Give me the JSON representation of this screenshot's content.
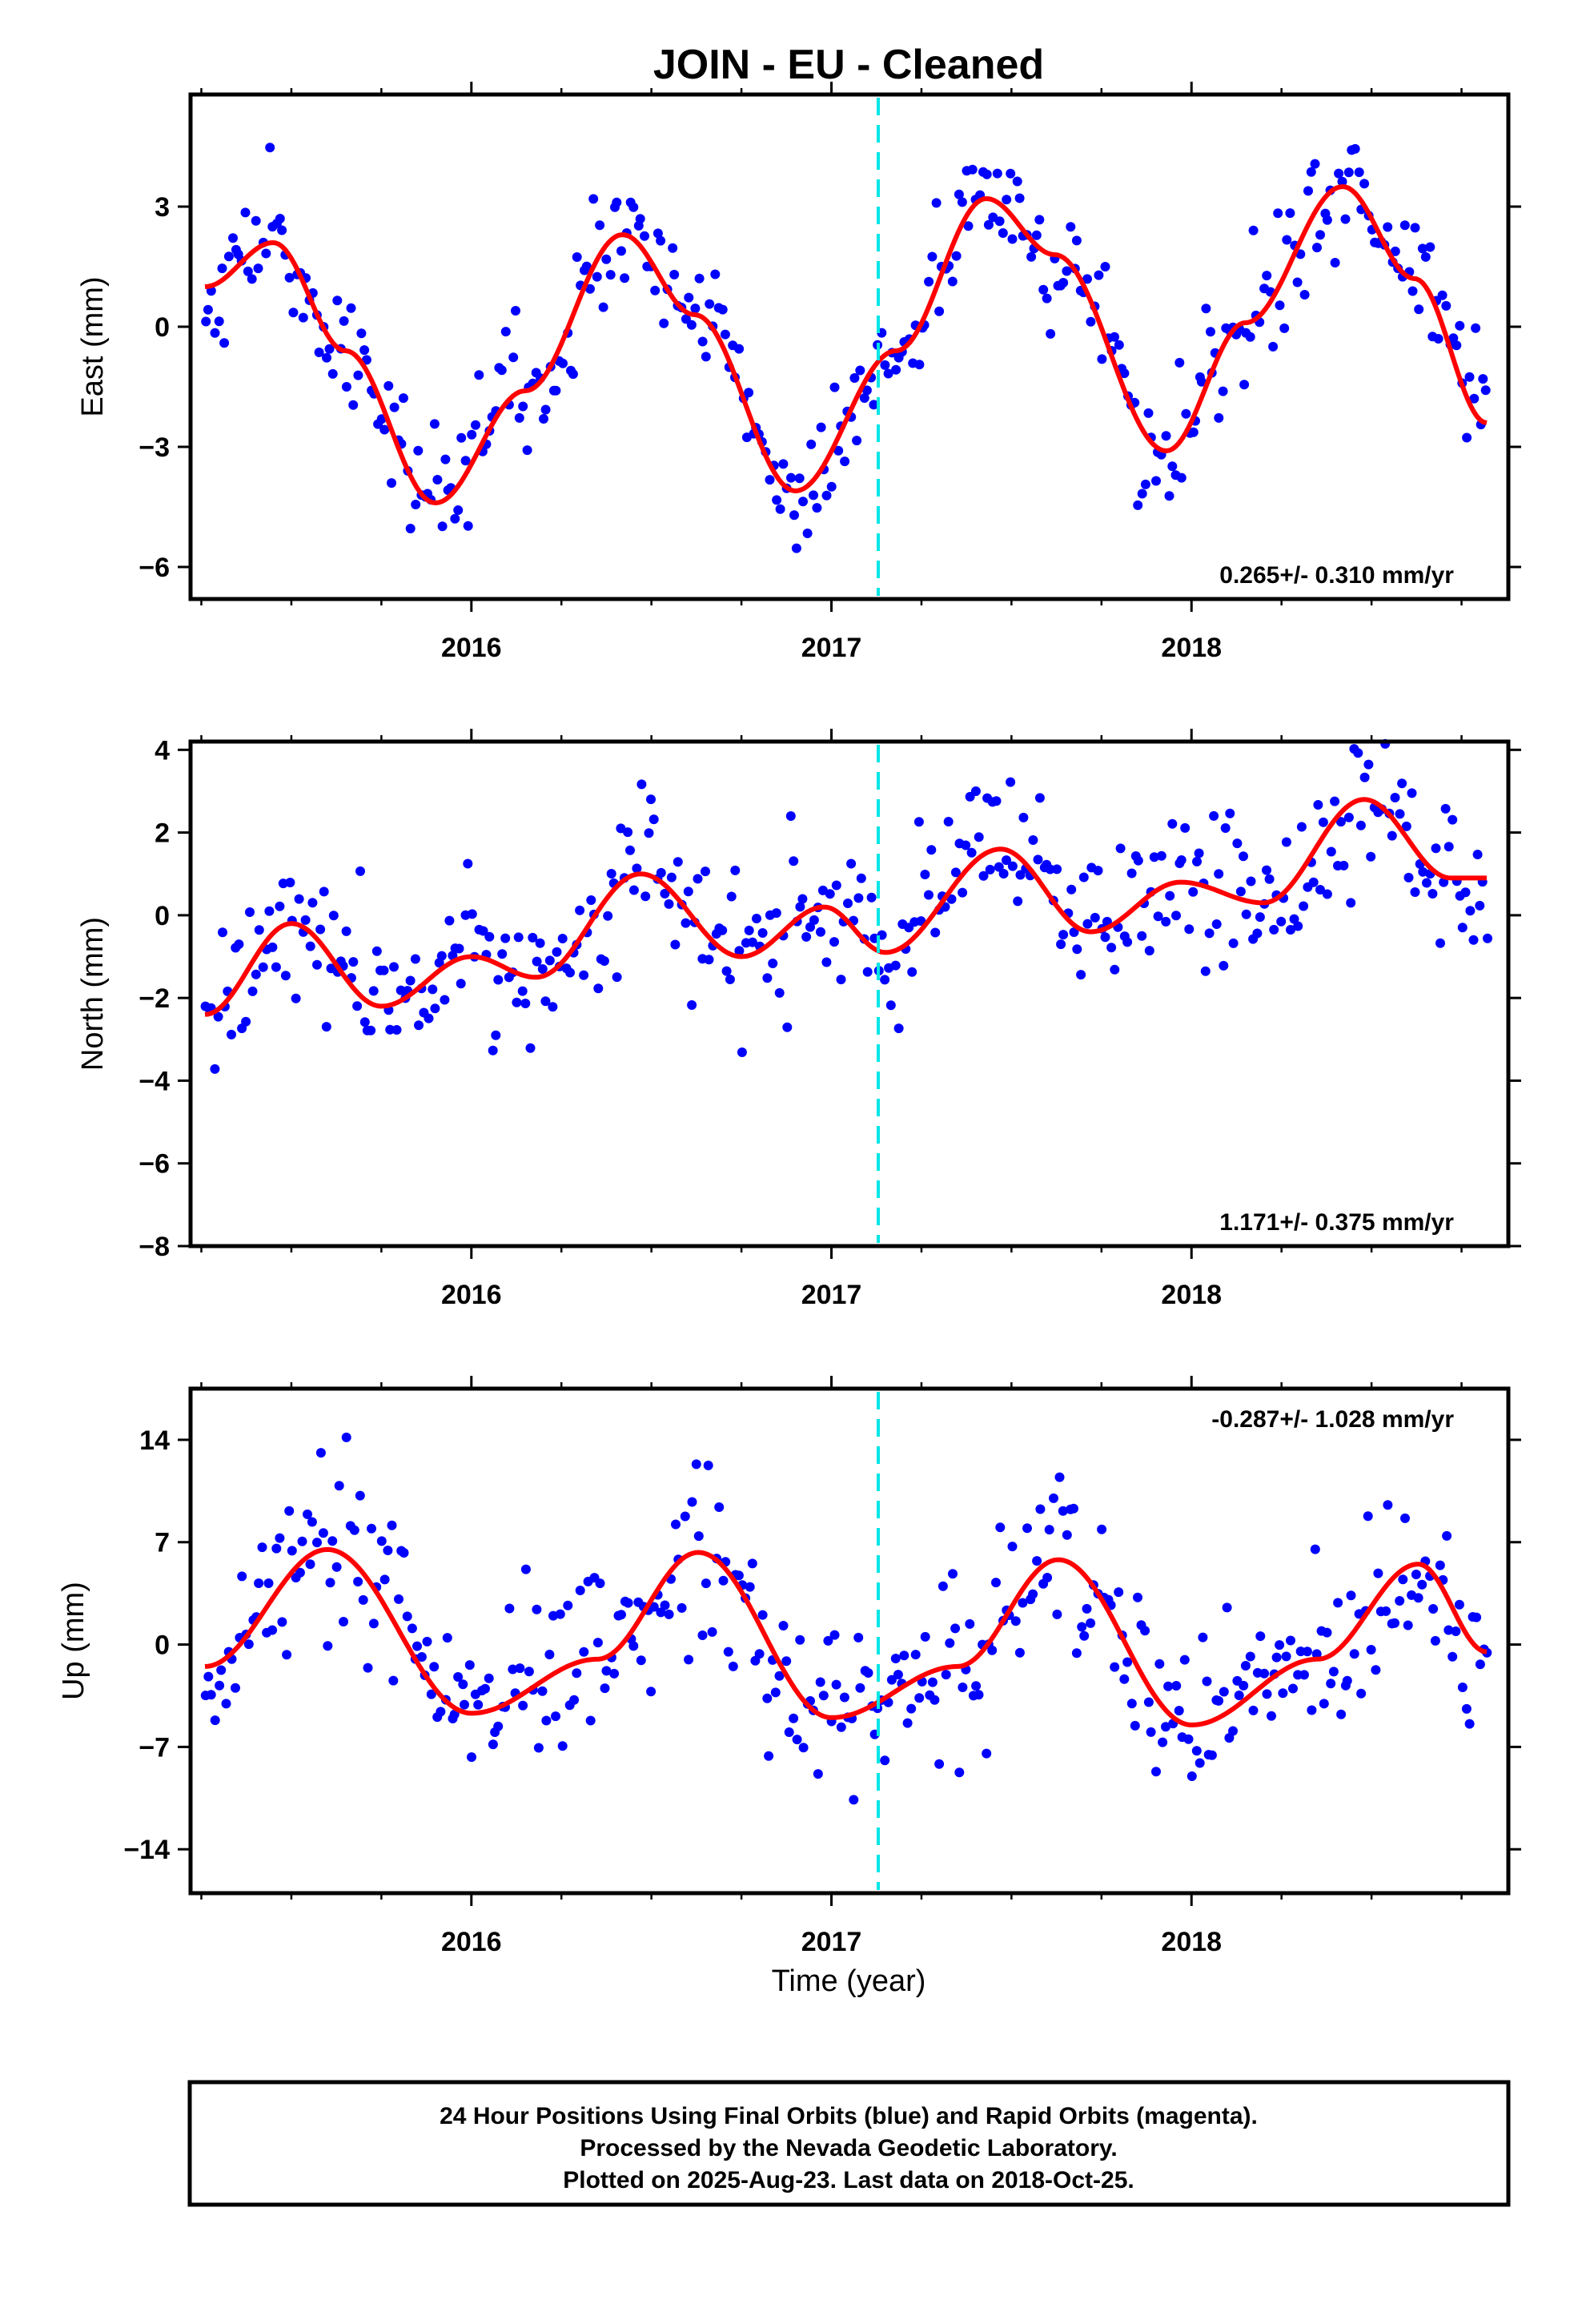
{
  "caption": [
    "24 Hour Positions Using Final Orbits (blue) and Rapid Orbits (magenta).",
    "Processed by the Nevada Geodetic Laboratory.",
    "Plotted on 2025-Aug-23. Last data on 2018-Oct-25."
  ],
  "colors": {
    "points": "#0000ff",
    "fit": "#ff0000",
    "marker": "#00e5e5",
    "frame": "#000000"
  },
  "chart_data": [
    {
      "type": "scatter",
      "title": "JOIN  - EU - Cleaned",
      "ylabel": "East (mm)",
      "xlabel": "",
      "xlim": [
        2015.22,
        2018.88
      ],
      "ylim": [
        -6.8,
        5.8
      ],
      "yticks": [
        3,
        0,
        -3,
        -6
      ],
      "ytick_labels": [
        "3",
        "0",
        "−3",
        "−6"
      ],
      "xticks": [
        2016,
        2017,
        2018
      ],
      "xtick_labels": [
        "2016",
        "2017",
        "2018"
      ],
      "marker_year": 2017.13,
      "rate_text": "0.265+/- 0.310 mm/yr",
      "rate_position": "bottom-right",
      "grid": false,
      "fit_curve": {
        "x_start": 2015.26,
        "x_end": 2018.82,
        "keys": [
          [
            2015.26,
            1.0
          ],
          [
            2015.45,
            2.1
          ],
          [
            2015.65,
            -0.6
          ],
          [
            2015.9,
            -4.4
          ],
          [
            2016.15,
            -1.6
          ],
          [
            2016.42,
            2.3
          ],
          [
            2016.62,
            0.3
          ],
          [
            2016.9,
            -4.1
          ],
          [
            2017.18,
            -0.6
          ],
          [
            2017.43,
            3.2
          ],
          [
            2017.62,
            1.8
          ],
          [
            2017.93,
            -3.1
          ],
          [
            2018.15,
            0.1
          ],
          [
            2018.42,
            3.5
          ],
          [
            2018.62,
            1.2
          ],
          [
            2018.82,
            -2.4
          ]
        ]
      },
      "noise_sd": 0.8,
      "n_points": 380
    },
    {
      "type": "scatter",
      "title": "",
      "ylabel": "North (mm)",
      "xlabel": "",
      "xlim": [
        2015.22,
        2018.88
      ],
      "ylim": [
        -8.0,
        4.2
      ],
      "yticks": [
        4,
        2,
        0,
        -2,
        -4,
        -6,
        -8
      ],
      "ytick_labels": [
        "4",
        "2",
        "0",
        "−2",
        "−4",
        "−6",
        "−8"
      ],
      "xticks": [
        2016,
        2017,
        2018
      ],
      "xtick_labels": [
        "2016",
        "2017",
        "2018"
      ],
      "marker_year": 2017.13,
      "rate_text": "1.171+/- 0.375 mm/yr",
      "rate_position": "bottom-right",
      "grid": false,
      "fit_curve": {
        "x_start": 2015.26,
        "x_end": 2018.82,
        "keys": [
          [
            2015.26,
            -2.4
          ],
          [
            2015.5,
            -0.2
          ],
          [
            2015.75,
            -2.2
          ],
          [
            2016.0,
            -1.0
          ],
          [
            2016.18,
            -1.5
          ],
          [
            2016.47,
            1.0
          ],
          [
            2016.75,
            -1.0
          ],
          [
            2016.98,
            0.2
          ],
          [
            2017.15,
            -0.9
          ],
          [
            2017.47,
            1.6
          ],
          [
            2017.72,
            -0.4
          ],
          [
            2017.97,
            0.8
          ],
          [
            2018.2,
            0.3
          ],
          [
            2018.48,
            2.8
          ],
          [
            2018.72,
            0.9
          ],
          [
            2018.82,
            0.9
          ]
        ]
      },
      "noise_sd": 0.9,
      "n_points": 380
    },
    {
      "type": "scatter",
      "title": "",
      "ylabel": "Up (mm)",
      "xlabel": "Time (year)",
      "xlim": [
        2015.22,
        2018.88
      ],
      "ylim": [
        -17.0,
        17.5
      ],
      "yticks": [
        14,
        7,
        0,
        -7,
        -14
      ],
      "ytick_labels": [
        "14",
        "7",
        "0",
        "−7",
        "−14"
      ],
      "xticks": [
        2016,
        2017,
        2018
      ],
      "xtick_labels": [
        "2016",
        "2017",
        "2018"
      ],
      "marker_year": 2017.13,
      "rate_text": "-0.287+/- 1.028 mm/yr",
      "rate_position": "top-right",
      "grid": false,
      "fit_curve": {
        "x_start": 2015.26,
        "x_end": 2018.82,
        "keys": [
          [
            2015.26,
            -1.5
          ],
          [
            2015.6,
            6.5
          ],
          [
            2016.0,
            -4.7
          ],
          [
            2016.35,
            -1.0
          ],
          [
            2016.63,
            6.3
          ],
          [
            2017.0,
            -5.0
          ],
          [
            2017.35,
            -1.5
          ],
          [
            2017.63,
            5.8
          ],
          [
            2018.0,
            -5.5
          ],
          [
            2018.35,
            -1.0
          ],
          [
            2018.63,
            5.5
          ],
          [
            2018.82,
            -0.5
          ]
        ]
      },
      "noise_sd": 3.0,
      "n_points": 380
    }
  ]
}
